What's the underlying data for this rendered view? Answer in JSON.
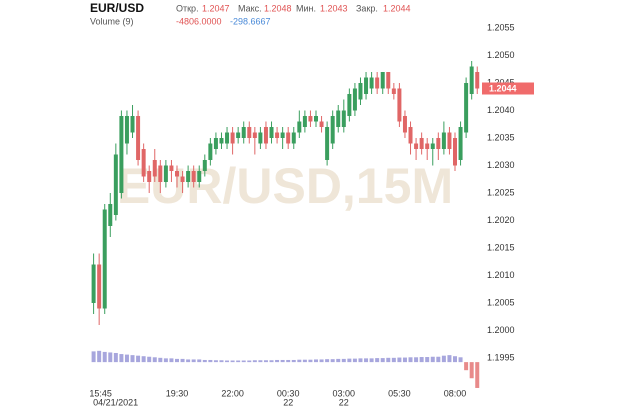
{
  "header": {
    "symbol": "EUR/USD",
    "open_label": "Откр.",
    "open": "1.2047",
    "high_label": "Макс.",
    "high": "1.2048",
    "low_label": "Мин.",
    "low": "1.2043",
    "close_label": "Закр.",
    "close": "1.2044",
    "volume_label": "Volume (9)",
    "volume_value": "-4806.0000",
    "volume_ma": "-298.6667"
  },
  "chart_data": {
    "type": "candlestick",
    "watermark": "EUR/USD,15M",
    "up_color": "#3a9e5e",
    "down_color": "#e06666",
    "volume_up_color": "#a7a6dd",
    "volume_down_color": "#e88a8a",
    "open": [
      1.2005,
      1.2012,
      1.2004,
      1.2019,
      1.2021,
      1.2025,
      1.2034,
      1.2036,
      1.2039,
      1.2033,
      1.2029,
      1.2031,
      1.203,
      1.2027,
      1.203,
      1.2029,
      1.2028,
      1.2027,
      1.2029,
      1.2027,
      1.2029,
      1.2031,
      1.2033,
      1.2034,
      1.2034,
      1.2036,
      1.2035,
      1.2035,
      1.2037,
      1.2036,
      1.2034,
      1.2037,
      1.2035,
      1.2036,
      1.2035,
      1.2036,
      1.2034,
      1.2036,
      1.2037,
      1.2039,
      1.2038,
      1.2038,
      1.2031,
      1.2034,
      1.2037,
      1.2037,
      1.2039,
      1.204,
      1.2042,
      1.2043,
      1.2044,
      1.2046,
      1.2044,
      1.2047,
      1.2044,
      1.2044,
      1.2039,
      1.2037,
      1.2034,
      1.2035,
      1.2034,
      1.2033,
      1.2035,
      1.2033,
      1.2036,
      1.2035,
      1.2031,
      1.2036,
      1.2043,
      1.2047
    ],
    "high": [
      1.2014,
      1.2014,
      1.2023,
      1.2025,
      1.2034,
      1.204,
      1.204,
      1.2041,
      1.204,
      1.2034,
      1.203,
      1.2033,
      1.2031,
      1.2031,
      1.2031,
      1.203,
      1.2029,
      1.203,
      1.203,
      1.203,
      1.2032,
      1.2035,
      1.2036,
      1.2036,
      1.2037,
      1.2037,
      1.2037,
      1.2038,
      1.2038,
      1.2037,
      1.2037,
      1.2038,
      1.2038,
      1.2037,
      1.2037,
      1.2037,
      1.2037,
      1.204,
      1.204,
      1.204,
      1.204,
      1.2039,
      1.2038,
      1.204,
      1.2041,
      1.2042,
      1.2044,
      1.2045,
      1.2046,
      1.2047,
      1.2047,
      1.2047,
      1.2047,
      1.2047,
      1.2045,
      1.2045,
      1.204,
      1.2038,
      1.2035,
      1.2036,
      1.2035,
      1.2035,
      1.2036,
      1.2038,
      1.2037,
      1.2036,
      1.2038,
      1.2046,
      1.2049,
      1.2048
    ],
    "low": [
      1.2003,
      1.2001,
      1.2003,
      1.2017,
      1.202,
      1.2024,
      1.2032,
      1.2035,
      1.203,
      1.2027,
      1.2025,
      1.2027,
      1.2025,
      1.2026,
      1.2027,
      1.2026,
      1.2025,
      1.2026,
      1.2026,
      1.2026,
      1.2028,
      1.203,
      1.2032,
      1.2033,
      1.2033,
      1.2032,
      1.2034,
      1.2034,
      1.2034,
      1.2032,
      1.2033,
      1.2033,
      1.2034,
      1.2034,
      1.2033,
      1.2033,
      1.2033,
      1.2035,
      1.2036,
      1.2037,
      1.2037,
      1.2036,
      1.203,
      1.2033,
      1.2036,
      1.2036,
      1.2038,
      1.2039,
      1.2041,
      1.2042,
      1.2043,
      1.2043,
      1.2043,
      1.2043,
      1.2042,
      1.2037,
      1.2035,
      1.2032,
      1.2031,
      1.2032,
      1.2031,
      1.203,
      1.2031,
      1.2032,
      1.2032,
      1.2029,
      1.203,
      1.2035,
      1.2042,
      1.2043
    ],
    "close": [
      1.2012,
      1.2004,
      1.2022,
      1.2023,
      1.2032,
      1.2039,
      1.2039,
      1.2039,
      1.2031,
      1.2028,
      1.2027,
      1.2028,
      1.2027,
      1.203,
      1.2029,
      1.2028,
      1.2027,
      1.2029,
      1.2027,
      1.2029,
      1.2031,
      1.2034,
      1.2035,
      1.2035,
      1.2036,
      1.2034,
      1.2036,
      1.2037,
      1.2035,
      1.2035,
      1.2036,
      1.2034,
      1.2037,
      1.2035,
      1.2036,
      1.2034,
      1.2036,
      1.2038,
      1.2039,
      1.2038,
      1.2039,
      1.2037,
      1.2037,
      1.2039,
      1.204,
      1.204,
      1.2043,
      1.2044,
      1.2045,
      1.2046,
      1.2046,
      1.2044,
      1.2047,
      1.2044,
      1.2043,
      1.2038,
      1.2036,
      1.2034,
      1.2033,
      1.2033,
      1.2033,
      1.2034,
      1.2033,
      1.2036,
      1.2033,
      1.203,
      1.2037,
      1.2045,
      1.2048,
      1.2044
    ],
    "volume": [
      2000,
      2100,
      1900,
      1800,
      1700,
      1500,
      1400,
      1300,
      1200,
      1100,
      1000,
      900,
      800,
      700,
      700,
      600,
      600,
      500,
      500,
      500,
      400,
      400,
      350,
      350,
      300,
      300,
      300,
      300,
      300,
      350,
      350,
      350,
      350,
      400,
      400,
      400,
      400,
      450,
      450,
      450,
      500,
      500,
      550,
      550,
      600,
      600,
      650,
      650,
      700,
      700,
      700,
      750,
      750,
      800,
      800,
      850,
      850,
      900,
      900,
      950,
      950,
      1000,
      1000,
      1200,
      1300,
      1100,
      900,
      -1500,
      -3000,
      -4806
    ],
    "last_price": 1.2044,
    "ylim": [
      1.1995,
      1.2055
    ],
    "yticks": [
      {
        "value": 1.1995,
        "label": "1.1995"
      },
      {
        "value": 1.2,
        "label": "1.2000"
      },
      {
        "value": 1.2005,
        "label": "1.2005"
      },
      {
        "value": 1.201,
        "label": "1.2010"
      },
      {
        "value": 1.2015,
        "label": "1.2015"
      },
      {
        "value": 1.202,
        "label": "1.2020"
      },
      {
        "value": 1.2025,
        "label": "1.2025"
      },
      {
        "value": 1.203,
        "label": "1.2030"
      },
      {
        "value": 1.2035,
        "label": "1.2035"
      },
      {
        "value": 1.204,
        "label": "1.2040"
      },
      {
        "value": 1.2045,
        "label": "1.2045"
      },
      {
        "value": 1.205,
        "label": "1.2050"
      },
      {
        "value": 1.2055,
        "label": "1.2055"
      }
    ],
    "volume_ylim": [
      -5000,
      3000
    ],
    "xticks": [
      {
        "value": 0,
        "label": "15:45"
      },
      {
        "value": 15,
        "label": "19:30"
      },
      {
        "value": 25,
        "label": "22:00"
      },
      {
        "value": 35,
        "label": "00:30"
      },
      {
        "value": 45,
        "label": "03:00"
      },
      {
        "value": 55,
        "label": "05:30"
      },
      {
        "value": 65,
        "label": "08:00"
      }
    ],
    "xdates": [
      {
        "value": 0,
        "label": "04/21/2021"
      },
      {
        "value": 35,
        "label": "22"
      },
      {
        "value": 45,
        "label": "22"
      }
    ],
    "grid": false
  }
}
